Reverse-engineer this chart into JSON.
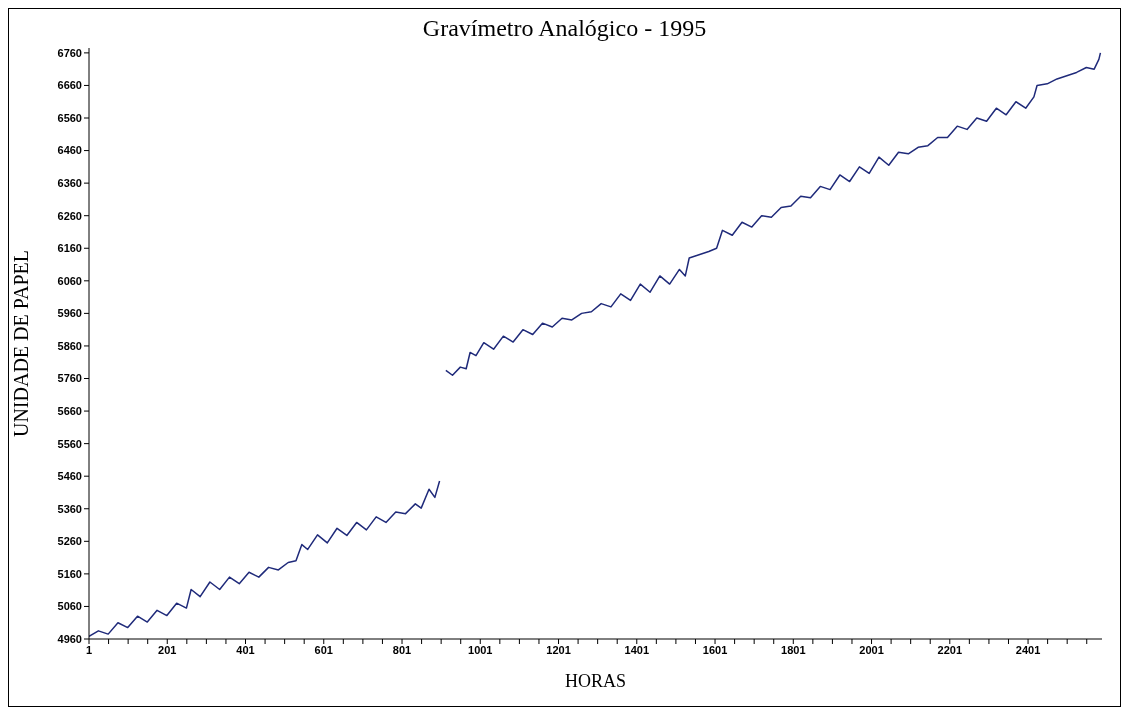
{
  "chart_data": {
    "type": "line",
    "title": "Gravímetro Analógico - 1995",
    "xlabel": "HORAS",
    "ylabel": "UNIDADE DE PAPEL",
    "grid": false,
    "legend": false,
    "marker": "none",
    "line_style": "solid",
    "xlim": [
      1,
      2590
    ],
    "ylim": [
      4960,
      6775
    ],
    "xticks": [
      1,
      {
        "value": 51,
        "label": null
      },
      {
        "value": 101,
        "label": null
      },
      {
        "value": 151,
        "label": null
      },
      201,
      {
        "value": 251,
        "label": null
      },
      {
        "value": 301,
        "label": null
      },
      {
        "value": 351,
        "label": null
      },
      401,
      {
        "value": 451,
        "label": null
      },
      {
        "value": 501,
        "label": null
      },
      {
        "value": 551,
        "label": null
      },
      601,
      {
        "value": 651,
        "label": null
      },
      {
        "value": 701,
        "label": null
      },
      {
        "value": 751,
        "label": null
      },
      801,
      {
        "value": 851,
        "label": null
      },
      {
        "value": 901,
        "label": null
      },
      {
        "value": 951,
        "label": null
      },
      1001,
      {
        "value": 1051,
        "label": null
      },
      {
        "value": 1101,
        "label": null
      },
      {
        "value": 1151,
        "label": null
      },
      1201,
      {
        "value": 1251,
        "label": null
      },
      {
        "value": 1301,
        "label": null
      },
      {
        "value": 1351,
        "label": null
      },
      1401,
      {
        "value": 1451,
        "label": null
      },
      {
        "value": 1501,
        "label": null
      },
      {
        "value": 1551,
        "label": null
      },
      1601,
      {
        "value": 1651,
        "label": null
      },
      {
        "value": 1701,
        "label": null
      },
      {
        "value": 1751,
        "label": null
      },
      1801,
      {
        "value": 1851,
        "label": null
      },
      {
        "value": 1901,
        "label": null
      },
      {
        "value": 1951,
        "label": null
      },
      2001,
      {
        "value": 2051,
        "label": null
      },
      {
        "value": 2101,
        "label": null
      },
      {
        "value": 2151,
        "label": null
      },
      2201,
      {
        "value": 2251,
        "label": null
      },
      {
        "value": 2301,
        "label": null
      },
      {
        "value": 2351,
        "label": null
      },
      2401,
      {
        "value": 2451,
        "label": null
      },
      {
        "value": 2501,
        "label": null
      },
      {
        "value": 2551,
        "label": null
      }
    ],
    "yticks": [
      4960,
      5060,
      5160,
      5260,
      5360,
      5460,
      5560,
      5660,
      5760,
      5860,
      5960,
      6060,
      6160,
      6260,
      6360,
      6460,
      6560,
      6660,
      6760
    ],
    "series": [
      {
        "color": "#1f2a7a",
        "x": [
          1,
          25,
          50,
          75,
          100,
          125,
          150,
          175,
          200,
          225,
          250,
          262,
          285,
          310,
          335,
          360,
          385,
          410,
          435,
          460,
          485,
          510,
          530,
          545,
          560,
          585,
          610,
          635,
          660,
          685,
          710,
          735,
          760,
          785,
          810,
          835,
          850,
          870,
          885,
          897,
          905,
          913,
          930,
          950,
          965,
          975,
          990,
          1010,
          1035,
          1060,
          1085,
          1110,
          1135,
          1160,
          1185,
          1210,
          1235,
          1260,
          1285,
          1310,
          1335,
          1360,
          1385,
          1410,
          1435,
          1460,
          1485,
          1510,
          1525,
          1535,
          1560,
          1585,
          1605,
          1620,
          1645,
          1670,
          1695,
          1720,
          1745,
          1770,
          1795,
          1820,
          1845,
          1870,
          1895,
          1920,
          1945,
          1970,
          1995,
          2020,
          2045,
          2070,
          2095,
          2120,
          2145,
          2170,
          2195,
          2220,
          2245,
          2270,
          2295,
          2320,
          2345,
          2370,
          2395,
          2416,
          2424,
          2450,
          2475,
          2500,
          2525,
          2550,
          2570,
          2582,
          2586
        ],
        "values": [
          4968,
          4985,
          4975,
          5010,
          4995,
          5030,
          5012,
          5048,
          5032,
          5070,
          5055,
          5112,
          5090,
          5135,
          5112,
          5150,
          5130,
          5165,
          5150,
          5180,
          5172,
          5195,
          5200,
          5250,
          5235,
          5280,
          5255,
          5300,
          5278,
          5318,
          5295,
          5335,
          5318,
          5350,
          5345,
          5375,
          5362,
          5420,
          5395,
          5445,
          null,
          5785,
          5770,
          5795,
          5790,
          5840,
          5830,
          5870,
          5850,
          5890,
          5872,
          5910,
          5895,
          5930,
          5918,
          5945,
          5940,
          5960,
          5965,
          5990,
          5980,
          6020,
          6000,
          6050,
          6025,
          6075,
          6050,
          6095,
          6075,
          6130,
          6140,
          6150,
          6160,
          6215,
          6200,
          6240,
          6225,
          6260,
          6255,
          6285,
          6290,
          6320,
          6315,
          6350,
          6340,
          6385,
          6365,
          6410,
          6390,
          6440,
          6415,
          6455,
          6450,
          6470,
          6475,
          6500,
          6500,
          6535,
          6525,
          6560,
          6550,
          6590,
          6570,
          6610,
          6590,
          6625,
          6660,
          6665,
          6680,
          6690,
          6700,
          6715,
          6710,
          6740,
          6760
        ]
      }
    ]
  }
}
